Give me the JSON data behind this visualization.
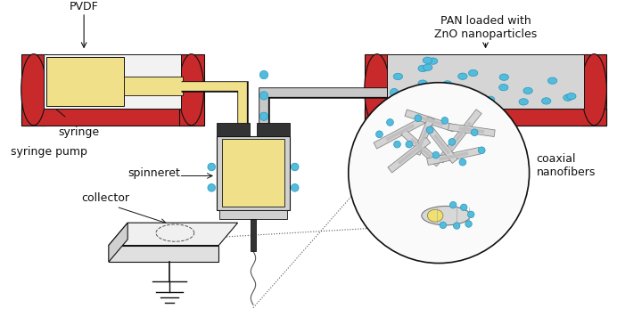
{
  "bg_color": "#ffffff",
  "red_color": "#c8292a",
  "yellow_color": "#f0e08a",
  "gray_color": "#b8b8b8",
  "dark_gray": "#444444",
  "light_gray": "#d0d0d0",
  "tube_gray": "#c8c8c8",
  "cyan_dot": "#55bbdd",
  "black": "#111111",
  "white": "#ffffff",
  "labels": {
    "pvdf": "PVDF",
    "pan": "PAN loaded with\nZnO nanoparticles",
    "syringe": "syringe",
    "syringe_pump": "syringe pump",
    "spinneret": "spinneret",
    "collector": "collector",
    "coaxial": "coaxial\nnanofibers"
  },
  "figsize": [
    6.92,
    3.65
  ],
  "dpi": 100
}
